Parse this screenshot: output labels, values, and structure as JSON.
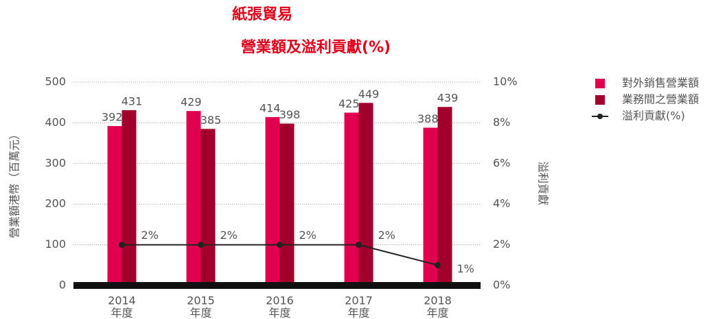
{
  "chart_data": {
    "type": "bar",
    "title": [
      "紙張貿易",
      "營業額及溢利貢獻(%)"
    ],
    "ylabel": "營業額港幣（百萬元）",
    "y2label": "溢利貢獻",
    "categories": [
      "2014",
      "2015",
      "2016",
      "2017",
      "2018"
    ],
    "category_sublabel": "年度",
    "series": [
      {
        "name": "對外銷售營業額",
        "color": "#e0004d",
        "values": [
          392,
          429,
          414,
          425,
          388
        ]
      },
      {
        "name": "業務間之營業額",
        "color": "#a1002d",
        "values": [
          431,
          385,
          398,
          449,
          439
        ]
      },
      {
        "name": "溢利貢獻(%)",
        "color": "#222222",
        "type": "line",
        "axis": "y2",
        "values": [
          2,
          2,
          2,
          2,
          1
        ],
        "value_labels": [
          "2%",
          "2%",
          "2%",
          "2%",
          "1%"
        ]
      }
    ],
    "ylim": [
      0,
      500
    ],
    "yticks": [
      0,
      100,
      200,
      300,
      400,
      500
    ],
    "y2lim": [
      0,
      10
    ],
    "y2ticks": [
      {
        "value": 0,
        "label": "0%"
      },
      {
        "value": 2,
        "label": "2%"
      },
      {
        "value": 4,
        "label": "4%"
      },
      {
        "value": 6,
        "label": "6%"
      },
      {
        "value": 8,
        "label": "8%"
      },
      {
        "value": 10,
        "label": "10%"
      }
    ],
    "grid": true,
    "legend": "upper right"
  }
}
